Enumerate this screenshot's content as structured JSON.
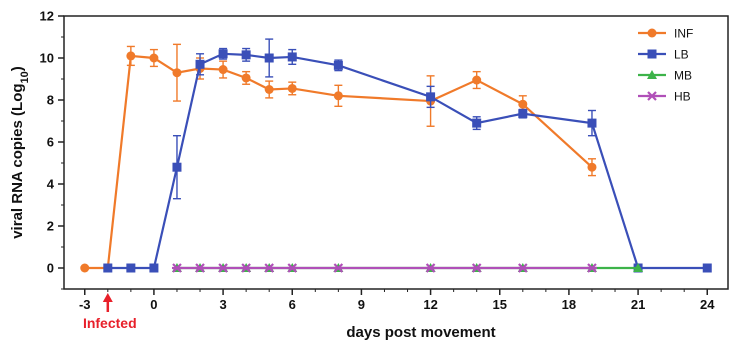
{
  "chart_data": {
    "type": "line",
    "xlabel": "days post movement",
    "ylabel_main": "viral RNA copies (Log",
    "ylabel_sub": "10",
    "ylabel_end": ")",
    "xlim": [
      -3.9,
      24.9
    ],
    "ylim": [
      -1,
      12
    ],
    "xticks": [
      -3,
      0,
      3,
      6,
      9,
      12,
      15,
      18,
      21,
      24
    ],
    "yticks": [
      0,
      2,
      4,
      6,
      8,
      10,
      12
    ],
    "legend_position": "top-right",
    "annotation": {
      "text": "Infected",
      "x": -2,
      "color": "#e8202a"
    },
    "series": [
      {
        "name": "INF",
        "color": "#f07a2a",
        "marker": "circle",
        "x": [
          -3,
          -2,
          -1,
          0,
          1,
          2,
          3,
          4,
          5,
          6,
          8,
          12,
          14,
          16,
          19
        ],
        "y": [
          0,
          0,
          10.1,
          10.0,
          9.3,
          9.5,
          9.45,
          9.05,
          8.5,
          8.55,
          8.2,
          7.95,
          8.95,
          7.8,
          4.8
        ],
        "err": [
          0,
          0,
          0.45,
          0.4,
          1.35,
          0.5,
          0.4,
          0.3,
          0.4,
          0.3,
          0.5,
          1.2,
          0.4,
          0.4,
          0.4
        ]
      },
      {
        "name": "LB",
        "color": "#3a4fb8",
        "marker": "square",
        "x": [
          -2,
          -1,
          0,
          1,
          2,
          3,
          4,
          5,
          6,
          8,
          12,
          14,
          16,
          19,
          21,
          24
        ],
        "y": [
          0,
          0,
          0,
          4.8,
          9.7,
          10.2,
          10.15,
          10.0,
          10.05,
          9.65,
          8.15,
          6.9,
          7.35,
          6.9,
          0,
          0
        ],
        "err": [
          0,
          0,
          0,
          1.5,
          0.5,
          0.25,
          0.3,
          0.9,
          0.35,
          0.25,
          0.5,
          0.3,
          0.2,
          0.6,
          0,
          0
        ]
      },
      {
        "name": "MB",
        "color": "#3db34a",
        "marker": "triangle",
        "x": [
          1,
          2,
          3,
          4,
          5,
          6,
          8,
          12,
          14,
          16,
          19,
          21
        ],
        "y": [
          0,
          0,
          0,
          0,
          0,
          0,
          0,
          0,
          0,
          0,
          0,
          0
        ]
      },
      {
        "name": "HB",
        "color": "#b04fb8",
        "marker": "asterisk",
        "x": [
          1,
          2,
          3,
          4,
          5,
          6,
          8,
          12,
          14,
          16,
          19
        ],
        "y": [
          0,
          0,
          0,
          0,
          0,
          0,
          0,
          0,
          0,
          0,
          0
        ]
      }
    ]
  }
}
